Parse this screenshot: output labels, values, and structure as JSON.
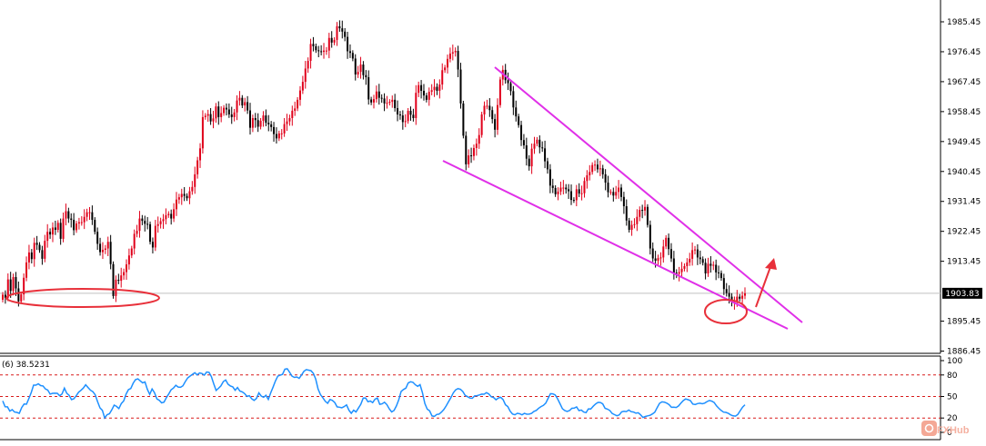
{
  "chart_data": [
    {
      "type": "candlestick",
      "title": "",
      "xlabel": "",
      "ylabel": "",
      "ylim": [
        1884.45,
        1992.45
      ],
      "y_ticks": [
        "1985.45",
        "1976.45",
        "1967.45",
        "1958.45",
        "1949.45",
        "1940.45",
        "1931.45",
        "1922.45",
        "1913.45",
        "1895.45",
        "1886.45"
      ],
      "y_tick_values": [
        1985.45,
        1976.45,
        1967.45,
        1958.45,
        1949.45,
        1940.45,
        1931.45,
        1922.45,
        1913.45,
        1895.45,
        1886.45
      ],
      "current_price": 1903.83,
      "current_price_label": "1903.83",
      "grid": false,
      "colors": {
        "up": "#e0001a",
        "down": "#000000",
        "trendline": "#e030e8",
        "annotation": "#e8303a",
        "price_line": "#c0c0c0"
      },
      "closes": [
        1903.4,
        1902.5,
        1908.0,
        1904.5,
        1908.7,
        1905.3,
        1901.4,
        1903.5,
        1908.5,
        1913.1,
        1916.1,
        1914.1,
        1919.0,
        1918.4,
        1916.8,
        1914.2,
        1919.6,
        1922.3,
        1921.5,
        1923.6,
        1922.9,
        1925.0,
        1920.2,
        1926.3,
        1928.5,
        1926.3,
        1925.9,
        1922.8,
        1924.8,
        1925.2,
        1925.2,
        1926.8,
        1928.2,
        1928.2,
        1925.9,
        1922.3,
        1918.7,
        1916.2,
        1916.9,
        1917.3,
        1919.3,
        1912.6,
        1903.0,
        1907.9,
        1907.6,
        1909.2,
        1910.2,
        1912.5,
        1915.2,
        1917.3,
        1921.7,
        1922.6,
        1926.3,
        1925.6,
        1924.7,
        1924.6,
        1919.3,
        1917.6,
        1924.1,
        1924.6,
        1925.5,
        1926.1,
        1927.3,
        1927.7,
        1926.3,
        1929.1,
        1932.0,
        1932.7,
        1933.7,
        1933.1,
        1932.4,
        1934.5,
        1935.8,
        1939.6,
        1943.8,
        1947.4,
        1956.8,
        1957.2,
        1957.7,
        1955.5,
        1956.4,
        1960.0,
        1956.8,
        1958.0,
        1959.6,
        1959.1,
        1957.6,
        1956.8,
        1958.2,
        1961.8,
        1962.6,
        1960.3,
        1961.3,
        1958.8,
        1953.6,
        1956.5,
        1955.9,
        1953.9,
        1955.7,
        1957.3,
        1955.1,
        1954.6,
        1953.8,
        1951.7,
        1950.4,
        1951.9,
        1951.9,
        1954.7,
        1955.5,
        1956.5,
        1958.7,
        1959.4,
        1962.0,
        1964.8,
        1967.4,
        1971.4,
        1973.7,
        1978.8,
        1978.1,
        1976.9,
        1976.6,
        1976.4,
        1976.8,
        1976.8,
        1980.6,
        1979.2,
        1980.0,
        1984.1,
        1983.5,
        1982.5,
        1980.9,
        1976.6,
        1976.1,
        1974.4,
        1969.6,
        1970.4,
        1972.6,
        1969.4,
        1968.8,
        1962.1,
        1961.2,
        1962.2,
        1964.5,
        1962.6,
        1962.4,
        1960.9,
        1961.1,
        1961.4,
        1962.0,
        1959.5,
        1957.6,
        1957.3,
        1955.3,
        1955.6,
        1958.7,
        1957.5,
        1956.5,
        1964.1,
        1966.4,
        1964.7,
        1963.3,
        1962.0,
        1964.4,
        1964.9,
        1965.9,
        1964.7,
        1966.6,
        1970.9,
        1971.7,
        1974.3,
        1975.9,
        1976.3,
        1976.7,
        1971.1,
        1960.9,
        1951.2,
        1942.6,
        1945.3,
        1945.1,
        1947.5,
        1948.8,
        1951.4,
        1957.6,
        1960.2,
        1960.2,
        1958.9,
        1956.2,
        1953.0,
        1960.4,
        1968.1,
        1971.0,
        1967.9,
        1967.0,
        1964.6,
        1959.7,
        1957.0,
        1954.4,
        1949.9,
        1948.3,
        1944.3,
        1942.0,
        1947.3,
        1948.8,
        1950.0,
        1947.7,
        1947.4,
        1943.5,
        1941.1,
        1936.2,
        1935.5,
        1933.6,
        1934.4,
        1935.6,
        1935.6,
        1935.1,
        1934.5,
        1931.9,
        1931.8,
        1935.1,
        1933.8,
        1933.9,
        1937.6,
        1939.3,
        1940.3,
        1942.4,
        1942.5,
        1941.1,
        1941.4,
        1939.6,
        1937.1,
        1934.2,
        1934.3,
        1933.2,
        1934.3,
        1935.6,
        1932.8,
        1930.0,
        1925.7,
        1922.9,
        1924.4,
        1924.6,
        1926.8,
        1928.9,
        1928.7,
        1929.8,
        1924.4,
        1917.3,
        1914.3,
        1913.6,
        1914.4,
        1914.6,
        1917.9,
        1920.5,
        1917.1,
        1914.3,
        1910.0,
        1909.7,
        1910.2,
        1911.2,
        1912.0,
        1913.1,
        1914.2,
        1916.8,
        1917.0,
        1914.6,
        1914.1,
        1913.0,
        1909.8,
        1912.7,
        1912.1,
        1912.4,
        1910.1,
        1909.9,
        1908.4,
        1905.1,
        1903.9,
        1902.8,
        1901.2,
        1901.3,
        1902.8,
        1902.2,
        1903.1,
        1903.8
      ],
      "oscillator": {
        "label": "(6) 38.5231",
        "value": 38.5231,
        "ylim": [
          0,
          100
        ],
        "ticks": [
          "100",
          "80",
          "50",
          "20",
          "0"
        ],
        "tick_values": [
          100,
          80,
          50,
          20,
          0
        ],
        "levels": [
          80,
          50,
          20
        ],
        "line_color": "#1e90ff",
        "level_color": "#d81b1b",
        "values": [
          43.8,
          35.7,
          35.6,
          29.6,
          31.7,
          28.4,
          27.9,
          26.6,
          34.7,
          39.5,
          39.2,
          47.1,
          55.3,
          65.8,
          65.8,
          67.7,
          65.2,
          64.7,
          60.5,
          59.0,
          53.3,
          54.4,
          54.5,
          54.4,
          51.0,
          53.5,
          61.7,
          54.5,
          51.7,
          45.7,
          46.8,
          51.0,
          55.9,
          58.6,
          61.8,
          66.3,
          62.4,
          58.7,
          56.7,
          52.3,
          42.6,
          34.2,
          30.8,
          20.1,
          24.6,
          26.0,
          31.4,
          38.0,
          36.2,
          33.2,
          40.2,
          43.8,
          53.3,
          59.5,
          61.1,
          68.5,
          73.5,
          74.5,
          71.8,
          69.0,
          70.2,
          60.0,
          52.9,
          60.5,
          55.4,
          46.7,
          44.7,
          41.2,
          42.2,
          48.4,
          53.5,
          59.4,
          61.8,
          65.7,
          63.2,
          62.8,
          64.9,
          70.7,
          75.8,
          78.5,
          80.9,
          83.2,
          80.1,
          82.8,
          82.0,
          79.7,
          84.2,
          83.7,
          77.6,
          67.6,
          58.5,
          61.4,
          64.7,
          70.8,
          73.1,
          67.1,
          64.7,
          63.4,
          58.7,
          62.5,
          57.6,
          56.5,
          54.1,
          50.1,
          51.2,
          46.8,
          44.6,
          47.3,
          55.1,
          50.6,
          48.8,
          51.6,
          46.0,
          55.1,
          63.1,
          71.7,
          78.3,
          79.6,
          80.9,
          88.1,
          88.6,
          83.6,
          78.2,
          76.6,
          77.2,
          75.3,
          80.0,
          85.1,
          87.5,
          86.7,
          86.0,
          82.3,
          74.2,
          60.4,
          52.6,
          48.3,
          43.3,
          40.5,
          45.8,
          44.5,
          41.7,
          35.6,
          35.1,
          34.3,
          35.9,
          38.2,
          30.9,
          26.6,
          30.9,
          28.5,
          33.9,
          39.2,
          47.9,
          48.0,
          42.6,
          43.7,
          41.5,
          46.2,
          47.8,
          39.1,
          39.8,
          42.0,
          38.7,
          32.9,
          28.5,
          30.5,
          36.8,
          45.3,
          57.1,
          59.8,
          61.7,
          68.8,
          70.5,
          69.8,
          66.3,
          64.2,
          66.5,
          55.4,
          40.1,
          32.4,
          30.1,
          23.0,
          22.3,
          24.9,
          25.4,
          28.2,
          31.8,
          36.8,
          42.6,
          48.4,
          54.9,
          59.2,
          61.0,
          60.0,
          56.9,
          51.5,
          49.8,
          47.8,
          47.5,
          50.9,
          51.1,
          52.1,
          53.3,
          53.2,
          55.3,
          53.5,
          49.7,
          48.5,
          45.4,
          47.9,
          48.8,
          45.7,
          38.5,
          35.9,
          29.5,
          25.6,
          24.5,
          26.6,
          26.0,
          24.4,
          26.5,
          25.3,
          25.4,
          26.4,
          29.2,
          30.6,
          33.7,
          35.9,
          37.6,
          40.8,
          47.5,
          53.9,
          53.7,
          52.1,
          46.8,
          39.9,
          33.0,
          30.4,
          29.2,
          30.4,
          33.5,
          33.8,
          35.4,
          30.4,
          31.1,
          28.3,
          27.5,
          32.8,
          32.6,
          36.5,
          39.6,
          41.8,
          41.7,
          39.7,
          33.6,
          32.4,
          30.5,
          26.3,
          24.7,
          23.2,
          24.3,
          28.6,
          29.4,
          29.0,
          31.1,
          28.8,
          28.4,
          26.7,
          27.3,
          24.4,
          20.7,
          22.2,
          23.1,
          23.8,
          25.7,
          28.2,
          34.6,
          40.5,
          42.5,
          42.2,
          40.7,
          38.6,
          35.0,
          35.2,
          34.7,
          36.8,
          40.7,
          44.3,
          46.6,
          45.6,
          44.3,
          39.5,
          38.8,
          40.1,
          40.6,
          39.9,
          40.7,
          42.9,
          44.4,
          43.5,
          41.7,
          37.0,
          33.5,
          30.5,
          28.2,
          27.9,
          26.5,
          24.3,
          23.1,
          22.6,
          25.1,
          30.3,
          35.2,
          38.5
        ]
      },
      "annotations": [
        {
          "type": "ellipse",
          "description": "support zone",
          "color": "#e8303a"
        },
        {
          "type": "ellipse",
          "description": "recent low",
          "color": "#e8303a"
        },
        {
          "type": "trendline",
          "description": "upper channel",
          "color": "#e030e8"
        },
        {
          "type": "trendline",
          "description": "lower channel",
          "color": "#e030e8"
        },
        {
          "type": "arrow",
          "direction": "up",
          "color": "#e8303a"
        }
      ]
    }
  ],
  "watermark": {
    "text": "FXHub",
    "icon": "fxhub-logo-icon"
  }
}
